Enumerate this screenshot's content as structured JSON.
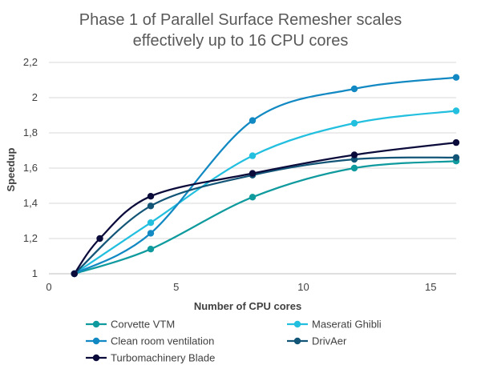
{
  "chart_data": {
    "type": "line",
    "title_lines": [
      "Phase 1 of Parallel Surface Remesher scales",
      "effectively up to 16 CPU cores"
    ],
    "xlabel": "Number of CPU cores",
    "ylabel": "Speedup",
    "xlim": [
      0,
      16
    ],
    "ylim": [
      1,
      2.2
    ],
    "x_ticks": [
      "0",
      "5",
      "10",
      "15"
    ],
    "x_tick_values": [
      0,
      5,
      10,
      15
    ],
    "y_ticks": [
      "1",
      "1,2",
      "1,4",
      "1,6",
      "1,8",
      "2",
      "2,2"
    ],
    "y_tick_values": [
      1,
      1.2,
      1.4,
      1.6,
      1.8,
      2.0,
      2.2
    ],
    "grid": "horizontal",
    "legend_position": "bottom",
    "smooth": true,
    "series": [
      {
        "name": "Corvette VTM",
        "color": "#0F9A9E",
        "x": [
          1,
          4,
          8,
          12,
          16
        ],
        "y": [
          1.0,
          1.14,
          1.435,
          1.6,
          1.64
        ]
      },
      {
        "name": "Maserati Ghibli",
        "color": "#22BFDF",
        "x": [
          1,
          4,
          8,
          12,
          16
        ],
        "y": [
          1.0,
          1.29,
          1.67,
          1.855,
          1.925
        ]
      },
      {
        "name": "Clean room ventilation",
        "color": "#1289C2",
        "x": [
          1,
          4,
          8,
          12,
          16
        ],
        "y": [
          1.0,
          1.23,
          1.87,
          2.05,
          2.115
        ]
      },
      {
        "name": "DrivAer",
        "color": "#125577",
        "x": [
          1,
          4,
          8,
          12,
          16
        ],
        "y": [
          1.0,
          1.385,
          1.56,
          1.65,
          1.66
        ]
      },
      {
        "name": "Turbomachinery Blade",
        "color": "#0B0B3B",
        "x": [
          1,
          2,
          4,
          8,
          12,
          16
        ],
        "y": [
          1.0,
          1.2,
          1.44,
          1.57,
          1.675,
          1.745
        ]
      }
    ]
  }
}
